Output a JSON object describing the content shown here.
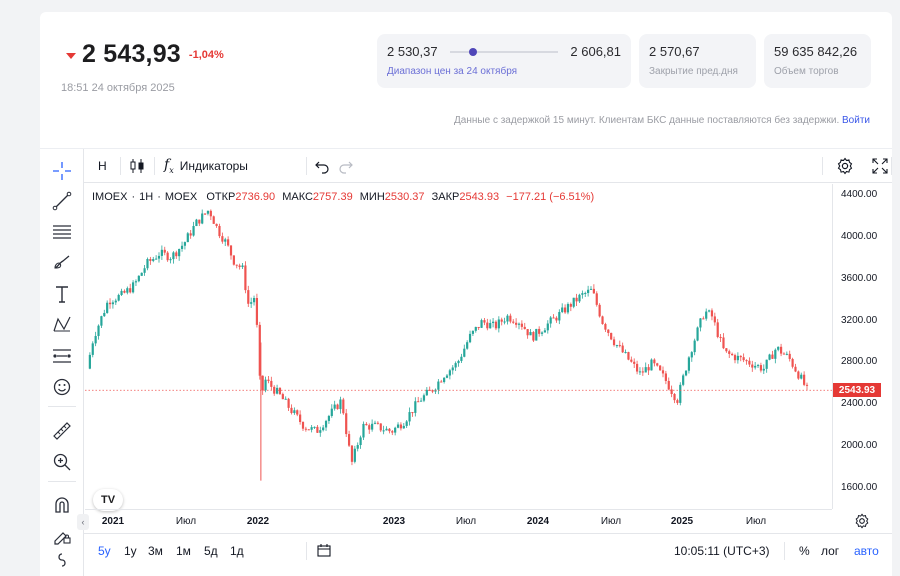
{
  "quote": {
    "last_price": "2 543,93",
    "change_pct": "-1,04%",
    "timestamp": "18:51 24 октября 2025",
    "range": {
      "low": "2 530,37",
      "high": "2 606,81",
      "label": "Диапазон цен за 24 октября",
      "position": 0.18
    },
    "prev_close": {
      "value": "2 570,67",
      "label": "Закрытие пред.дня"
    },
    "volume": {
      "value": "59 635 842,26",
      "label": "Объем торгов"
    },
    "delay_note": "Данные с задержкой 15 минут. Клиентам БКС данные поставляются без задержки.",
    "login_link": "Войти"
  },
  "toolbar": {
    "interval": "Н",
    "indicators_label": "Индикаторы"
  },
  "legend": {
    "symbol": "IMOEX",
    "interval": "1Н",
    "exchange": "MOEX",
    "open_label": "ОТКР",
    "open": "2736.90",
    "high_label": "МАКС",
    "high": "2757.39",
    "low_label": "МИН",
    "low": "2530.37",
    "close_label": "ЗАКР",
    "close": "2543.93",
    "change": "−177.21 (−6.51%)"
  },
  "price_axis": {
    "ticks": [
      "4400.00",
      "4000.00",
      "3600.00",
      "3200.00",
      "2800.00",
      "2400.00",
      "2000.00",
      "1600.00"
    ],
    "last_tag": "2543.93"
  },
  "time_axis": {
    "labels": [
      {
        "text": "2021",
        "bold": true
      },
      {
        "text": "Июл",
        "bold": false
      },
      {
        "text": "2022",
        "bold": true
      },
      {
        "text": "2023",
        "bold": true
      },
      {
        "text": "Июл",
        "bold": false
      },
      {
        "text": "2024",
        "bold": true
      },
      {
        "text": "Июл",
        "bold": false
      },
      {
        "text": "2025",
        "bold": true
      },
      {
        "text": "Июл",
        "bold": false
      }
    ]
  },
  "bottombar": {
    "ranges": [
      "5у",
      "1у",
      "3м",
      "1м",
      "5д",
      "1д"
    ],
    "active_range": "5у",
    "clock": "10:05:11 (UTC+3)",
    "pct_label": "%",
    "log_label": "лог",
    "auto_label": "авто"
  },
  "colors": {
    "up": "#26a69a",
    "down": "#ef5350",
    "accent": "#2962ff",
    "negative": "#e53935"
  },
  "chart_data": {
    "type": "candlestick",
    "symbol": "IMOEX",
    "ylim": [
      1500,
      4500
    ],
    "close_path": [
      [
        "2020-12-25",
        2750
      ],
      [
        "2021-01-10",
        3050
      ],
      [
        "2021-02-15",
        3400
      ],
      [
        "2021-03-20",
        3450
      ],
      [
        "2021-04-20",
        3550
      ],
      [
        "2021-05-20",
        3750
      ],
      [
        "2021-06-20",
        3850
      ],
      [
        "2021-07-20",
        3820
      ],
      [
        "2021-08-20",
        3950
      ],
      [
        "2021-09-20",
        4150
      ],
      [
        "2021-10-20",
        4270
      ],
      [
        "2021-11-10",
        4080
      ],
      [
        "2021-12-01",
        3950
      ],
      [
        "2021-12-20",
        3780
      ],
      [
        "2022-01-10",
        3700
      ],
      [
        "2022-01-25",
        3350
      ],
      [
        "2022-02-10",
        3450
      ],
      [
        "2022-02-24",
        2450
      ],
      [
        "2022-03-05",
        2650
      ],
      [
        "2022-04-10",
        2500
      ],
      [
        "2022-05-10",
        2350
      ],
      [
        "2022-06-10",
        2200
      ],
      [
        "2022-07-10",
        2150
      ],
      [
        "2022-08-10",
        2300
      ],
      [
        "2022-09-10",
        2450
      ],
      [
        "2022-09-25",
        2050
      ],
      [
        "2022-10-05",
        1850
      ],
      [
        "2022-11-01",
        2200
      ],
      [
        "2022-12-01",
        2200
      ],
      [
        "2023-01-10",
        2150
      ],
      [
        "2023-02-10",
        2250
      ],
      [
        "2023-03-20",
        2450
      ],
      [
        "2023-04-20",
        2550
      ],
      [
        "2023-05-20",
        2700
      ],
      [
        "2023-06-20",
        2800
      ],
      [
        "2023-07-20",
        3050
      ],
      [
        "2023-08-20",
        3200
      ],
      [
        "2023-09-20",
        3150
      ],
      [
        "2023-10-20",
        3250
      ],
      [
        "2023-11-20",
        3200
      ],
      [
        "2023-12-20",
        3050
      ],
      [
        "2024-01-20",
        3150
      ],
      [
        "2024-02-20",
        3250
      ],
      [
        "2024-03-20",
        3350
      ],
      [
        "2024-04-20",
        3450
      ],
      [
        "2024-05-15",
        3500
      ],
      [
        "2024-06-10",
        3200
      ],
      [
        "2024-07-10",
        3000
      ],
      [
        "2024-08-10",
        2850
      ],
      [
        "2024-09-10",
        2700
      ],
      [
        "2024-10-10",
        2800
      ],
      [
        "2024-11-10",
        2650
      ],
      [
        "2024-12-10",
        2450
      ],
      [
        "2025-01-10",
        2900
      ],
      [
        "2025-02-15",
        3300
      ],
      [
        "2025-03-05",
        3250
      ],
      [
        "2025-04-05",
        2900
      ],
      [
        "2025-05-10",
        2850
      ],
      [
        "2025-06-10",
        2800
      ],
      [
        "2025-07-10",
        2750
      ],
      [
        "2025-08-10",
        2950
      ],
      [
        "2025-09-10",
        2850
      ],
      [
        "2025-10-10",
        2650
      ],
      [
        "2025-10-24",
        2544
      ]
    ],
    "last_close": 2543.93
  }
}
